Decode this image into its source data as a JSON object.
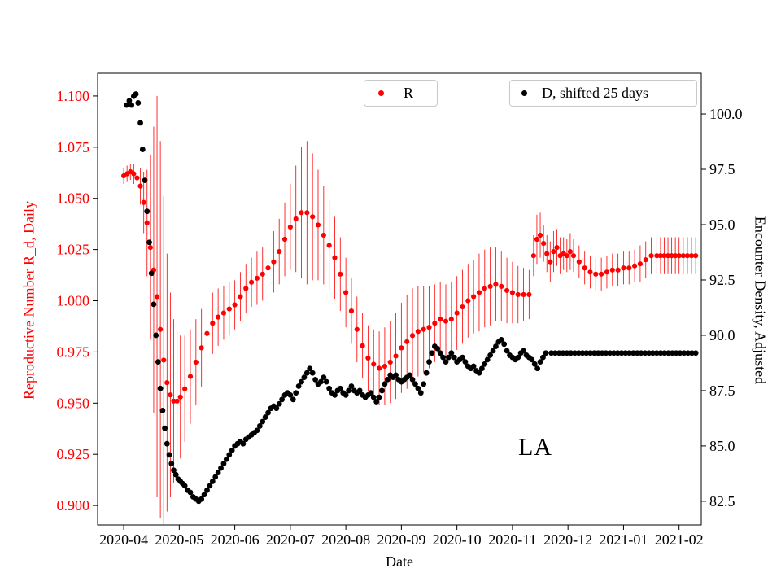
{
  "chart_data": {
    "type": "scatter",
    "title": "",
    "xlabel": "Date",
    "ylabel_left": "Reproductive Number R_d, Daily",
    "ylabel_right": "Encounter Density, Adjusted",
    "annotation": "LA",
    "y_left_color": "#ff0000",
    "y_right_color": "#000000",
    "x_unit": "months since 2020-04-01",
    "x_range_months": [
      -0.47,
      10.4
    ],
    "x_ticks": [
      "2020-04",
      "2020-05",
      "2020-06",
      "2020-07",
      "2020-08",
      "2020-09",
      "2020-10",
      "2020-11",
      "2020-12",
      "2021-01",
      "2021-02"
    ],
    "y_left_range": [
      0.8905,
      1.1111
    ],
    "y_left_ticks": [
      "1.100",
      "1.075",
      "1.050",
      "1.025",
      "1.000",
      "0.975",
      "0.950",
      "0.925",
      "0.900"
    ],
    "y_right_range": [
      81.43,
      101.84
    ],
    "y_right_ticks": [
      "100.0",
      "97.5",
      "95.0",
      "92.5",
      "90.0",
      "87.5",
      "85.0",
      "82.5"
    ],
    "legend_position": "upper center, two boxes inside axes",
    "grid": false,
    "sample_step_months": 0.07,
    "series": [
      {
        "name": "R",
        "axis": "left",
        "color": "#ff0000",
        "marker_radius": 3.1,
        "error_bars": true,
        "points_xye": [
          [
            0.0,
            1.061,
            0.004
          ],
          [
            0.06,
            1.062,
            0.004
          ],
          [
            0.12,
            1.063,
            0.004
          ],
          [
            0.18,
            1.062,
            0.005
          ],
          [
            0.24,
            1.06,
            0.006
          ],
          [
            0.3,
            1.056,
            0.009
          ],
          [
            0.36,
            1.048,
            0.015
          ],
          [
            0.42,
            1.038,
            0.026
          ],
          [
            0.48,
            1.026,
            0.045
          ],
          [
            0.54,
            1.015,
            0.07
          ],
          [
            0.6,
            1.002,
            0.098
          ],
          [
            0.66,
            0.986,
            0.092
          ],
          [
            0.72,
            0.971,
            0.08
          ],
          [
            0.78,
            0.96,
            0.063
          ],
          [
            0.84,
            0.954,
            0.05
          ],
          [
            0.9,
            0.951,
            0.04
          ],
          [
            0.96,
            0.951,
            0.034
          ],
          [
            1.02,
            0.953,
            0.03
          ],
          [
            1.1,
            0.957,
            0.026
          ],
          [
            1.2,
            0.963,
            0.023
          ],
          [
            1.3,
            0.97,
            0.021
          ],
          [
            1.4,
            0.977,
            0.019
          ],
          [
            1.5,
            0.984,
            0.017
          ],
          [
            1.6,
            0.989,
            0.015
          ],
          [
            1.7,
            0.992,
            0.014
          ],
          [
            1.8,
            0.994,
            0.013
          ],
          [
            1.9,
            0.996,
            0.013
          ],
          [
            2.0,
            0.998,
            0.012
          ],
          [
            2.1,
            1.002,
            0.012
          ],
          [
            2.2,
            1.006,
            0.012
          ],
          [
            2.3,
            1.009,
            0.012
          ],
          [
            2.4,
            1.011,
            0.013
          ],
          [
            2.5,
            1.013,
            0.013
          ],
          [
            2.6,
            1.016,
            0.014
          ],
          [
            2.7,
            1.019,
            0.015
          ],
          [
            2.8,
            1.024,
            0.016
          ],
          [
            2.9,
            1.03,
            0.018
          ],
          [
            3.0,
            1.036,
            0.021
          ],
          [
            3.1,
            1.04,
            0.026
          ],
          [
            3.2,
            1.043,
            0.032
          ],
          [
            3.3,
            1.043,
            0.035
          ],
          [
            3.4,
            1.041,
            0.031
          ],
          [
            3.5,
            1.037,
            0.027
          ],
          [
            3.6,
            1.032,
            0.024
          ],
          [
            3.7,
            1.027,
            0.022
          ],
          [
            3.8,
            1.021,
            0.02
          ],
          [
            3.9,
            1.013,
            0.018
          ],
          [
            4.0,
            1.004,
            0.017
          ],
          [
            4.1,
            0.995,
            0.016
          ],
          [
            4.2,
            0.986,
            0.016
          ],
          [
            4.3,
            0.978,
            0.016
          ],
          [
            4.4,
            0.972,
            0.016
          ],
          [
            4.5,
            0.969,
            0.017
          ],
          [
            4.6,
            0.967,
            0.018
          ],
          [
            4.7,
            0.968,
            0.019
          ],
          [
            4.8,
            0.97,
            0.02
          ],
          [
            4.9,
            0.973,
            0.021
          ],
          [
            5.0,
            0.977,
            0.022
          ],
          [
            5.1,
            0.98,
            0.023
          ],
          [
            5.2,
            0.983,
            0.023
          ],
          [
            5.3,
            0.985,
            0.022
          ],
          [
            5.4,
            0.986,
            0.021
          ],
          [
            5.5,
            0.987,
            0.02
          ],
          [
            5.6,
            0.989,
            0.019
          ],
          [
            5.7,
            0.991,
            0.018
          ],
          [
            5.8,
            0.99,
            0.018
          ],
          [
            5.9,
            0.991,
            0.018
          ],
          [
            6.0,
            0.994,
            0.018
          ],
          [
            6.1,
            0.997,
            0.018
          ],
          [
            6.2,
            1.0,
            0.018
          ],
          [
            6.3,
            1.002,
            0.018
          ],
          [
            6.4,
            1.004,
            0.019
          ],
          [
            6.5,
            1.006,
            0.019
          ],
          [
            6.6,
            1.007,
            0.019
          ],
          [
            6.7,
            1.008,
            0.018
          ],
          [
            6.8,
            1.007,
            0.017
          ],
          [
            6.9,
            1.005,
            0.016
          ],
          [
            7.0,
            1.004,
            0.015
          ],
          [
            7.1,
            1.003,
            0.014
          ],
          [
            7.2,
            1.003,
            0.013
          ],
          [
            7.3,
            1.003,
            0.012
          ],
          [
            7.38,
            1.022,
            0.01
          ],
          [
            7.44,
            1.03,
            0.012
          ],
          [
            7.5,
            1.032,
            0.011
          ],
          [
            7.56,
            1.028,
            0.009
          ],
          [
            7.62,
            1.023,
            0.009
          ],
          [
            7.68,
            1.019,
            0.01
          ],
          [
            7.74,
            1.024,
            0.01
          ],
          [
            7.8,
            1.026,
            0.009
          ],
          [
            7.86,
            1.022,
            0.009
          ],
          [
            7.92,
            1.023,
            0.008
          ],
          [
            7.98,
            1.022,
            0.008
          ],
          [
            8.04,
            1.024,
            0.009
          ],
          [
            8.1,
            1.022,
            0.008
          ],
          [
            8.2,
            1.019,
            0.008
          ],
          [
            8.3,
            1.016,
            0.008
          ],
          [
            8.4,
            1.014,
            0.008
          ],
          [
            8.5,
            1.013,
            0.008
          ],
          [
            8.6,
            1.013,
            0.008
          ],
          [
            8.7,
            1.014,
            0.008
          ],
          [
            8.8,
            1.015,
            0.008
          ],
          [
            8.9,
            1.015,
            0.008
          ],
          [
            9.0,
            1.016,
            0.008
          ],
          [
            9.1,
            1.016,
            0.008
          ],
          [
            9.2,
            1.017,
            0.008
          ],
          [
            9.3,
            1.018,
            0.009
          ],
          [
            9.4,
            1.02,
            0.009
          ],
          [
            9.5,
            1.022,
            0.009
          ],
          [
            9.6,
            1.022,
            0.009
          ],
          [
            9.8,
            1.022,
            0.009
          ],
          [
            10.0,
            1.022,
            0.009
          ],
          [
            10.15,
            1.022,
            0.009
          ],
          [
            10.3,
            1.022,
            0.009
          ]
        ]
      },
      {
        "name": "D, shifted 25 days",
        "axis": "right",
        "color": "#000000",
        "marker_radius": 3.4,
        "error_bars": false,
        "points_xye": [
          [
            0.05,
            100.4
          ],
          [
            0.1,
            100.6
          ],
          [
            0.14,
            100.4
          ],
          [
            0.18,
            100.8
          ],
          [
            0.22,
            100.9
          ],
          [
            0.26,
            100.5
          ],
          [
            0.3,
            99.6
          ],
          [
            0.34,
            98.4
          ],
          [
            0.38,
            97.0
          ],
          [
            0.42,
            95.6
          ],
          [
            0.46,
            94.2
          ],
          [
            0.5,
            92.8
          ],
          [
            0.54,
            91.4
          ],
          [
            0.58,
            90.0
          ],
          [
            0.62,
            88.8
          ],
          [
            0.66,
            87.6
          ],
          [
            0.7,
            86.6
          ],
          [
            0.74,
            85.8
          ],
          [
            0.78,
            85.1
          ],
          [
            0.82,
            84.6
          ],
          [
            0.86,
            84.2
          ],
          [
            0.9,
            83.9
          ],
          [
            0.94,
            83.7
          ],
          [
            0.98,
            83.5
          ],
          [
            1.02,
            83.4
          ],
          [
            1.06,
            83.3
          ],
          [
            1.1,
            83.2
          ],
          [
            1.15,
            83.0
          ],
          [
            1.2,
            82.9
          ],
          [
            1.25,
            82.7
          ],
          [
            1.3,
            82.6
          ],
          [
            1.35,
            82.5
          ],
          [
            1.4,
            82.6
          ],
          [
            1.45,
            82.8
          ],
          [
            1.5,
            83.0
          ],
          [
            1.55,
            83.2
          ],
          [
            1.6,
            83.4
          ],
          [
            1.65,
            83.6
          ],
          [
            1.7,
            83.8
          ],
          [
            1.75,
            84.0
          ],
          [
            1.8,
            84.2
          ],
          [
            1.85,
            84.4
          ],
          [
            1.9,
            84.6
          ],
          [
            1.95,
            84.8
          ],
          [
            2.0,
            85.0
          ],
          [
            2.05,
            85.1
          ],
          [
            2.1,
            85.2
          ],
          [
            2.15,
            85.1
          ],
          [
            2.2,
            85.3
          ],
          [
            2.25,
            85.4
          ],
          [
            2.3,
            85.5
          ],
          [
            2.35,
            85.6
          ],
          [
            2.4,
            85.7
          ],
          [
            2.45,
            85.9
          ],
          [
            2.5,
            86.1
          ],
          [
            2.55,
            86.3
          ],
          [
            2.6,
            86.5
          ],
          [
            2.65,
            86.7
          ],
          [
            2.7,
            86.8
          ],
          [
            2.75,
            86.7
          ],
          [
            2.8,
            86.9
          ],
          [
            2.85,
            87.1
          ],
          [
            2.9,
            87.3
          ],
          [
            2.95,
            87.4
          ],
          [
            3.0,
            87.3
          ],
          [
            3.05,
            87.1
          ],
          [
            3.1,
            87.4
          ],
          [
            3.15,
            87.7
          ],
          [
            3.2,
            87.9
          ],
          [
            3.25,
            88.1
          ],
          [
            3.3,
            88.3
          ],
          [
            3.35,
            88.5
          ],
          [
            3.4,
            88.3
          ],
          [
            3.45,
            88.0
          ],
          [
            3.5,
            87.8
          ],
          [
            3.55,
            87.9
          ],
          [
            3.6,
            88.1
          ],
          [
            3.65,
            87.9
          ],
          [
            3.7,
            87.6
          ],
          [
            3.75,
            87.4
          ],
          [
            3.8,
            87.3
          ],
          [
            3.85,
            87.5
          ],
          [
            3.9,
            87.6
          ],
          [
            3.95,
            87.4
          ],
          [
            4.0,
            87.3
          ],
          [
            4.05,
            87.5
          ],
          [
            4.1,
            87.7
          ],
          [
            4.15,
            87.5
          ],
          [
            4.2,
            87.4
          ],
          [
            4.25,
            87.5
          ],
          [
            4.3,
            87.3
          ],
          [
            4.35,
            87.2
          ],
          [
            4.4,
            87.3
          ],
          [
            4.45,
            87.4
          ],
          [
            4.5,
            87.2
          ],
          [
            4.55,
            87.0
          ],
          [
            4.6,
            87.2
          ],
          [
            4.65,
            87.5
          ],
          [
            4.7,
            87.8
          ],
          [
            4.75,
            88.0
          ],
          [
            4.8,
            88.2
          ],
          [
            4.85,
            88.1
          ],
          [
            4.9,
            88.2
          ],
          [
            4.95,
            88.0
          ],
          [
            5.0,
            87.9
          ],
          [
            5.05,
            88.0
          ],
          [
            5.1,
            88.1
          ],
          [
            5.15,
            88.2
          ],
          [
            5.2,
            88.0
          ],
          [
            5.25,
            87.8
          ],
          [
            5.3,
            87.6
          ],
          [
            5.35,
            87.4
          ],
          [
            5.4,
            87.8
          ],
          [
            5.45,
            88.3
          ],
          [
            5.5,
            88.8
          ],
          [
            5.55,
            89.2
          ],
          [
            5.6,
            89.5
          ],
          [
            5.65,
            89.4
          ],
          [
            5.7,
            89.2
          ],
          [
            5.75,
            89.0
          ],
          [
            5.8,
            88.8
          ],
          [
            5.85,
            89.0
          ],
          [
            5.9,
            89.2
          ],
          [
            5.95,
            89.0
          ],
          [
            6.0,
            88.8
          ],
          [
            6.05,
            88.9
          ],
          [
            6.1,
            89.0
          ],
          [
            6.15,
            88.8
          ],
          [
            6.2,
            88.6
          ],
          [
            6.25,
            88.5
          ],
          [
            6.3,
            88.6
          ],
          [
            6.35,
            88.4
          ],
          [
            6.4,
            88.3
          ],
          [
            6.45,
            88.5
          ],
          [
            6.5,
            88.7
          ],
          [
            6.55,
            88.9
          ],
          [
            6.6,
            89.1
          ],
          [
            6.65,
            89.3
          ],
          [
            6.7,
            89.5
          ],
          [
            6.75,
            89.7
          ],
          [
            6.8,
            89.8
          ],
          [
            6.85,
            89.6
          ],
          [
            6.9,
            89.3
          ],
          [
            6.95,
            89.1
          ],
          [
            7.0,
            89.0
          ],
          [
            7.05,
            88.9
          ],
          [
            7.1,
            89.0
          ],
          [
            7.15,
            89.2
          ],
          [
            7.2,
            89.3
          ],
          [
            7.25,
            89.1
          ],
          [
            7.3,
            89.0
          ],
          [
            7.35,
            88.9
          ],
          [
            7.4,
            88.7
          ],
          [
            7.45,
            88.5
          ],
          [
            7.5,
            88.8
          ],
          [
            7.55,
            89.0
          ],
          [
            7.6,
            89.2
          ],
          [
            7.7,
            89.2
          ],
          [
            10.3,
            89.2
          ]
        ]
      }
    ]
  }
}
